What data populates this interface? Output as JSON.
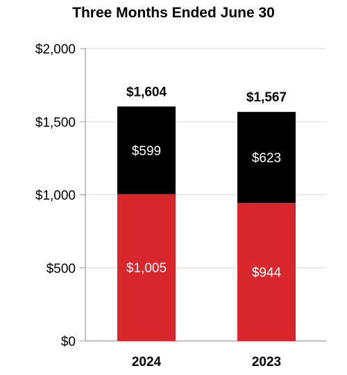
{
  "chart_data": {
    "type": "bar",
    "stacked": true,
    "title": "Three Months Ended June 30",
    "xlabel": "",
    "ylabel": "",
    "categories": [
      "2024",
      "2023"
    ],
    "series": [
      {
        "color": "#d9272e",
        "values": [
          1005,
          944
        ],
        "labels": [
          "$1,005",
          "$944"
        ]
      },
      {
        "color": "#000000",
        "values": [
          599,
          623
        ],
        "labels": [
          "$599",
          "$623"
        ]
      }
    ],
    "totals": [
      1604,
      1567
    ],
    "total_labels": [
      "$1,604",
      "$1,567"
    ],
    "ylim": [
      0,
      2000
    ],
    "yticks": [
      0,
      500,
      1000,
      1500,
      2000
    ],
    "ytick_labels": [
      "$0",
      "$500",
      "$1,000",
      "$1,500",
      "$2,000"
    ],
    "grid": true,
    "legend": "none"
  },
  "colors": {
    "grid": "#d9d9d9",
    "axis": "#999999"
  }
}
